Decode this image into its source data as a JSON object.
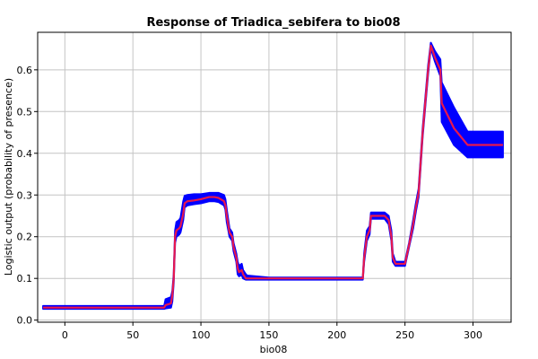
{
  "chart_data": {
    "type": "line",
    "title": "Response of Triadica_sebifera to bio08",
    "xlabel": "bio08",
    "ylabel": "Logistic output (probability of presence)",
    "xlim": [
      -20,
      328
    ],
    "ylim": [
      -0.005,
      0.69
    ],
    "xticks": [
      0,
      50,
      100,
      150,
      200,
      250,
      300
    ],
    "yticks": [
      0.0,
      0.1,
      0.2,
      0.3,
      0.4,
      0.5,
      0.6
    ],
    "grid": true,
    "series": [
      {
        "role": "mean",
        "color": "#e8174d",
        "x": [
          -16,
          73,
          74,
          78,
          79,
          80,
          81,
          82,
          84,
          85,
          87,
          88,
          90,
          95,
          100,
          106,
          110,
          113,
          117,
          118,
          119,
          121,
          123,
          124,
          126,
          127,
          128,
          130,
          131,
          133,
          134,
          150,
          170,
          190,
          219,
          220,
          222,
          224,
          225,
          230,
          235,
          238,
          240,
          241,
          243,
          250,
          253,
          256,
          258,
          260,
          263,
          267,
          269,
          272,
          276,
          277,
          286,
          296,
          322
        ],
        "values": [
          0.03,
          0.03,
          0.036,
          0.04,
          0.06,
          0.1,
          0.2,
          0.215,
          0.22,
          0.225,
          0.255,
          0.28,
          0.285,
          0.287,
          0.29,
          0.295,
          0.295,
          0.293,
          0.285,
          0.275,
          0.25,
          0.21,
          0.2,
          0.175,
          0.15,
          0.125,
          0.115,
          0.12,
          0.11,
          0.1,
          0.1,
          0.1,
          0.1,
          0.1,
          0.1,
          0.15,
          0.2,
          0.215,
          0.25,
          0.25,
          0.25,
          0.24,
          0.2,
          0.15,
          0.135,
          0.135,
          0.18,
          0.23,
          0.27,
          0.305,
          0.45,
          0.6,
          0.658,
          0.63,
          0.6,
          0.52,
          0.46,
          0.42,
          0.42
        ]
      },
      {
        "role": "upper",
        "color": "#0000ff",
        "x": [
          -16,
          73,
          74,
          78,
          79,
          80,
          81,
          82,
          84,
          85,
          87,
          88,
          90,
          95,
          100,
          106,
          110,
          113,
          117,
          118,
          119,
          121,
          123,
          124,
          126,
          127,
          128,
          130,
          131,
          133,
          134,
          150,
          170,
          190,
          219,
          220,
          222,
          224,
          225,
          230,
          235,
          238,
          240,
          241,
          243,
          250,
          253,
          256,
          258,
          260,
          263,
          267,
          269,
          272,
          276,
          277,
          286,
          296,
          322
        ],
        "values": [
          0.034,
          0.034,
          0.05,
          0.055,
          0.07,
          0.11,
          0.215,
          0.235,
          0.24,
          0.245,
          0.285,
          0.298,
          0.3,
          0.302,
          0.302,
          0.305,
          0.305,
          0.305,
          0.3,
          0.29,
          0.265,
          0.22,
          0.21,
          0.185,
          0.16,
          0.14,
          0.13,
          0.135,
          0.12,
          0.11,
          0.107,
          0.102,
          0.102,
          0.102,
          0.102,
          0.16,
          0.215,
          0.225,
          0.258,
          0.258,
          0.258,
          0.25,
          0.215,
          0.16,
          0.14,
          0.14,
          0.185,
          0.24,
          0.28,
          0.315,
          0.46,
          0.61,
          0.665,
          0.645,
          0.625,
          0.57,
          0.51,
          0.452,
          0.452
        ]
      },
      {
        "role": "lower",
        "color": "#0000ff",
        "x": [
          -16,
          73,
          74,
          78,
          79,
          80,
          81,
          82,
          84,
          85,
          87,
          88,
          90,
          95,
          100,
          106,
          110,
          113,
          117,
          118,
          119,
          121,
          123,
          124,
          126,
          127,
          128,
          130,
          131,
          133,
          134,
          150,
          170,
          190,
          219,
          220,
          222,
          224,
          225,
          230,
          235,
          238,
          240,
          241,
          243,
          250,
          253,
          256,
          258,
          260,
          263,
          267,
          269,
          272,
          276,
          277,
          286,
          296,
          322
        ],
        "values": [
          0.027,
          0.027,
          0.028,
          0.03,
          0.045,
          0.09,
          0.185,
          0.2,
          0.205,
          0.21,
          0.24,
          0.27,
          0.275,
          0.278,
          0.28,
          0.285,
          0.285,
          0.283,
          0.275,
          0.265,
          0.235,
          0.2,
          0.19,
          0.165,
          0.14,
          0.11,
          0.105,
          0.108,
          0.1,
          0.097,
          0.097,
          0.097,
          0.097,
          0.097,
          0.097,
          0.14,
          0.19,
          0.205,
          0.243,
          0.243,
          0.243,
          0.23,
          0.19,
          0.14,
          0.13,
          0.13,
          0.175,
          0.22,
          0.26,
          0.295,
          0.44,
          0.59,
          0.652,
          0.62,
          0.585,
          0.475,
          0.42,
          0.39,
          0.39
        ]
      }
    ]
  }
}
